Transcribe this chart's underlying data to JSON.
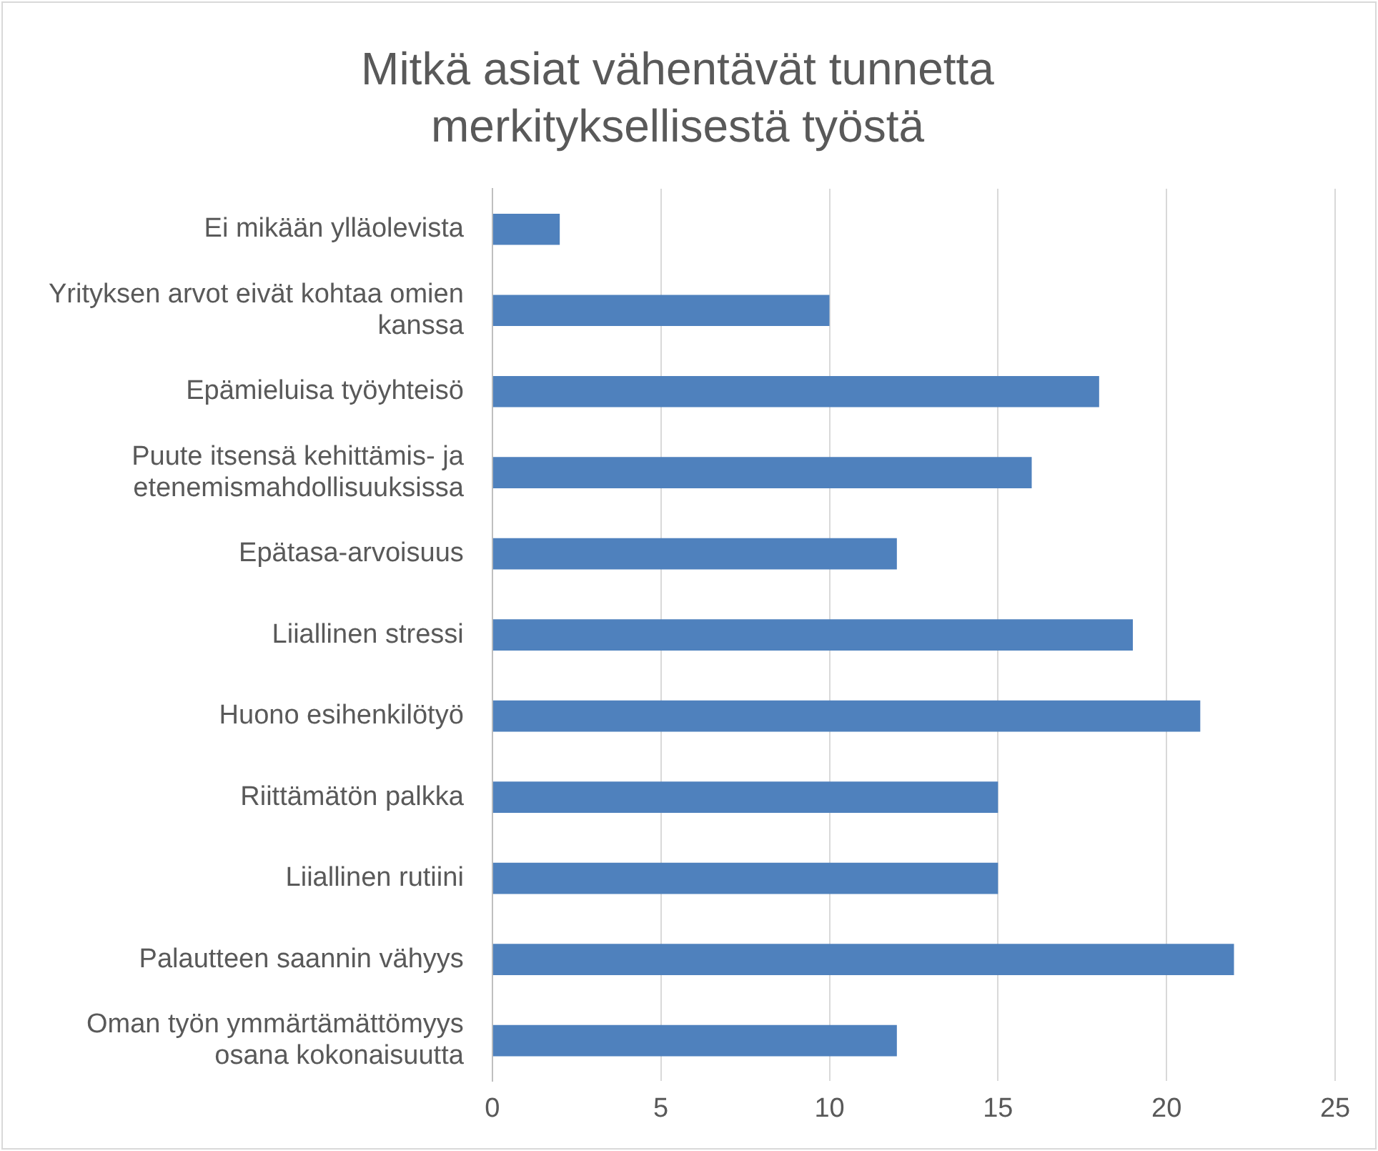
{
  "chart_data": {
    "type": "bar",
    "orientation": "horizontal",
    "title": "Mitkä asiat vähentävät tunnetta merkityksellisestä työstä",
    "categories": [
      "Ei mikään ylläolevista",
      "Yrityksen arvot eivät kohtaa omien kanssa",
      "Epämieluisa työyhteisö",
      "Puute itsensä kehittämis- ja etenemismahdollisuuksissa",
      "Epätasa-arvoisuus",
      "Liiallinen stressi",
      "Huono esihenkilötyö",
      "Riittämätön palkka",
      "Liiallinen rutiini",
      "Palautteen saannin vähyys",
      "Oman työn ymmärtämättömyys osana kokonaisuutta"
    ],
    "values": [
      2,
      10,
      18,
      16,
      12,
      19,
      21,
      15,
      15,
      22,
      12
    ],
    "color": "#4f81bd",
    "xlim": [
      0,
      25
    ],
    "xticks": [
      0,
      5,
      10,
      15,
      20,
      25
    ],
    "grid": "x"
  }
}
